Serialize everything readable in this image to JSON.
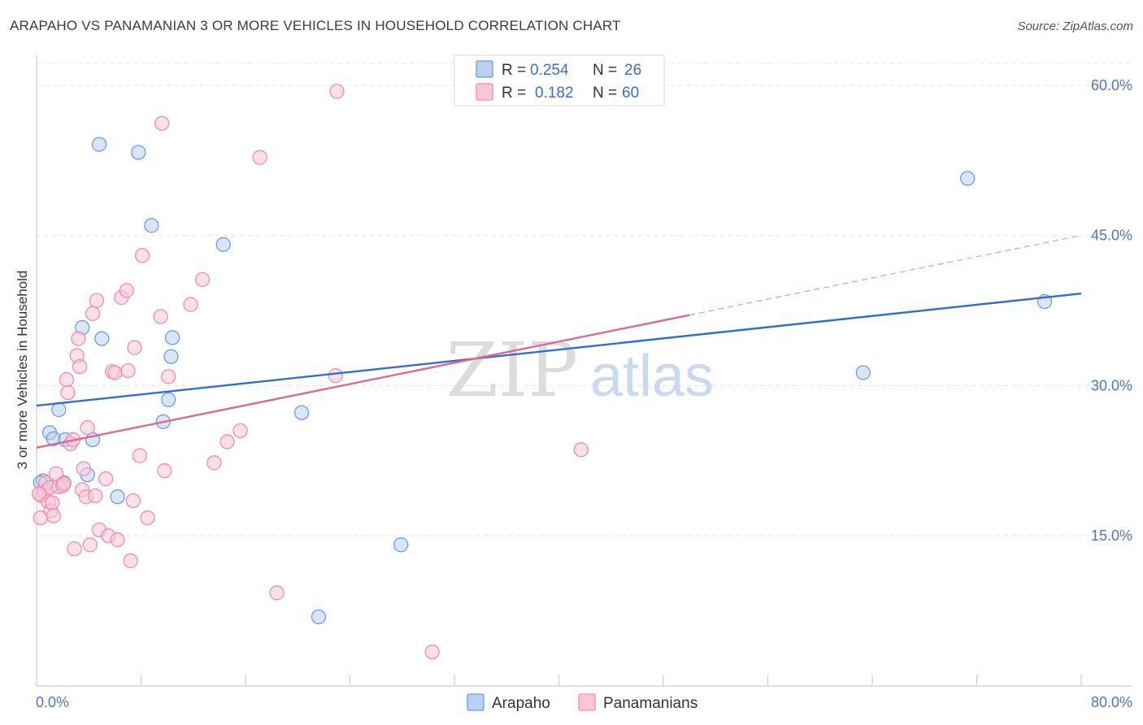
{
  "header": {
    "title": "ARAPAHO VS PANAMANIAN 3 OR MORE VEHICLES IN HOUSEHOLD CORRELATION CHART",
    "source": "Source: ZipAtlas.com"
  },
  "watermark": {
    "zip": "ZIP",
    "atlas": "atlas"
  },
  "chart_data": {
    "type": "scatter",
    "title": "ARAPAHO VS PANAMANIAN 3 OR MORE VEHICLES IN HOUSEHOLD CORRELATION CHART",
    "xlabel": "",
    "ylabel": "3 or more Vehicles in Household",
    "xlim": [
      0,
      80
    ],
    "ylim": [
      0,
      63
    ],
    "x_tick_labels": {
      "min": "0.0%",
      "max": "80.0%"
    },
    "y_ticks": [
      {
        "value": 15,
        "label": "15.0%"
      },
      {
        "value": 30,
        "label": "30.0%"
      },
      {
        "value": 45,
        "label": "45.0%"
      },
      {
        "value": 60,
        "label": "60.0%"
      }
    ],
    "grid": true,
    "legend_position": "top-center",
    "stats": [
      {
        "r_label": "R =",
        "r_value": "0.254",
        "n_label": "N =",
        "n_value": "26"
      },
      {
        "r_label": "R =",
        "r_value": "0.182",
        "n_label": "N =",
        "n_value": "60"
      }
    ],
    "series": [
      {
        "name": "Arapaho",
        "color": "#6b9ee8",
        "fill": "#b9d0f3",
        "line_color": "#2f6fd0",
        "trend": {
          "x0": 0,
          "y0": 28.0,
          "x1": 80,
          "y1": 39.2,
          "dashed_from": null
        },
        "points": [
          [
            0.5,
            20.5
          ],
          [
            1.0,
            25.3
          ],
          [
            1.3,
            24.7
          ],
          [
            1.7,
            27.6
          ],
          [
            2.2,
            24.6
          ],
          [
            2.1,
            20.3
          ],
          [
            3.5,
            35.8
          ],
          [
            3.9,
            21.1
          ],
          [
            4.3,
            24.6
          ],
          [
            4.8,
            54.1
          ],
          [
            5.0,
            34.7
          ],
          [
            6.2,
            18.9
          ],
          [
            7.8,
            53.3
          ],
          [
            8.8,
            46.0
          ],
          [
            9.7,
            26.4
          ],
          [
            10.1,
            28.6
          ],
          [
            10.3,
            32.9
          ],
          [
            10.4,
            34.8
          ],
          [
            14.3,
            44.1
          ],
          [
            20.3,
            27.3
          ],
          [
            21.6,
            6.9
          ],
          [
            27.9,
            14.1
          ],
          [
            63.3,
            31.3
          ],
          [
            71.3,
            50.7
          ],
          [
            77.2,
            38.4
          ],
          [
            0.3,
            20.3
          ]
        ]
      },
      {
        "name": "Panamanians",
        "color": "#f08db0",
        "fill": "#f9c6d7",
        "line_color": "#e06890",
        "trend": {
          "x0": 0,
          "y0": 23.8,
          "x1": 80,
          "y1": 45.0,
          "dashed_from": 50
        },
        "points": [
          [
            0.3,
            16.8
          ],
          [
            0.4,
            19.0
          ],
          [
            0.6,
            19.4
          ],
          [
            0.7,
            20.3
          ],
          [
            0.9,
            18.4
          ],
          [
            1.0,
            19.8
          ],
          [
            1.1,
            17.5
          ],
          [
            1.2,
            18.3
          ],
          [
            1.3,
            17.0
          ],
          [
            1.5,
            21.2
          ],
          [
            1.7,
            19.9
          ],
          [
            2.0,
            20.0
          ],
          [
            2.1,
            20.2
          ],
          [
            2.3,
            30.6
          ],
          [
            2.4,
            29.3
          ],
          [
            2.6,
            24.2
          ],
          [
            2.8,
            24.6
          ],
          [
            2.9,
            13.7
          ],
          [
            3.1,
            33.0
          ],
          [
            3.2,
            34.7
          ],
          [
            3.3,
            31.9
          ],
          [
            3.5,
            19.6
          ],
          [
            3.6,
            21.7
          ],
          [
            3.8,
            18.9
          ],
          [
            3.9,
            25.8
          ],
          [
            4.1,
            14.1
          ],
          [
            4.3,
            37.2
          ],
          [
            4.5,
            19.0
          ],
          [
            4.6,
            38.5
          ],
          [
            4.8,
            15.6
          ],
          [
            5.3,
            20.7
          ],
          [
            5.5,
            15.0
          ],
          [
            5.8,
            31.4
          ],
          [
            6.0,
            31.3
          ],
          [
            6.2,
            14.6
          ],
          [
            6.5,
            38.8
          ],
          [
            6.9,
            39.5
          ],
          [
            7.0,
            31.5
          ],
          [
            7.2,
            12.5
          ],
          [
            7.4,
            18.5
          ],
          [
            7.5,
            33.8
          ],
          [
            7.9,
            23.0
          ],
          [
            8.1,
            43.0
          ],
          [
            8.5,
            16.8
          ],
          [
            9.5,
            36.9
          ],
          [
            9.6,
            56.2
          ],
          [
            9.8,
            21.5
          ],
          [
            10.1,
            30.9
          ],
          [
            11.8,
            38.1
          ],
          [
            12.7,
            40.6
          ],
          [
            13.6,
            22.3
          ],
          [
            14.6,
            24.4
          ],
          [
            15.6,
            25.5
          ],
          [
            17.1,
            52.8
          ],
          [
            18.4,
            9.3
          ],
          [
            22.9,
            31.0
          ],
          [
            23.0,
            59.4
          ],
          [
            30.3,
            3.4
          ],
          [
            41.7,
            23.6
          ],
          [
            0.2,
            19.2
          ]
        ]
      }
    ]
  }
}
